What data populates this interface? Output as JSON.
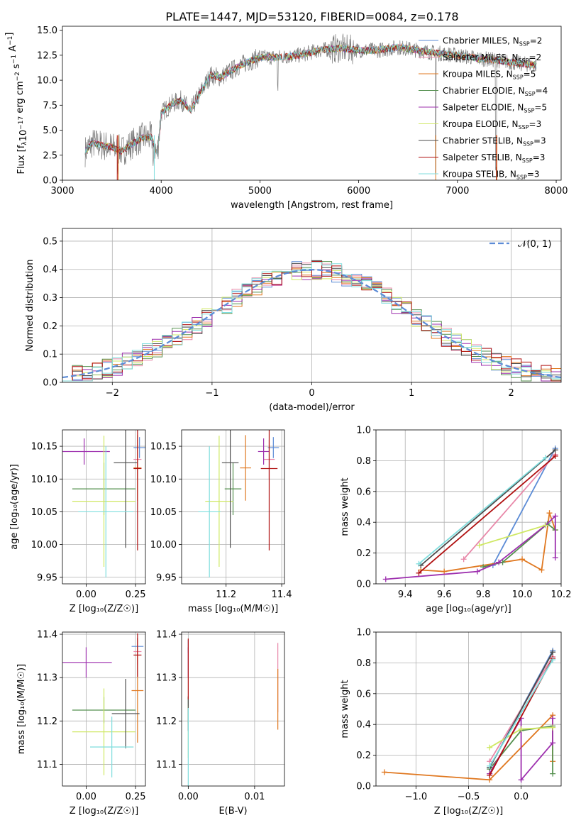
{
  "title": "PLATE=1447, MJD=53120, FIBERID=0084, z=0.178",
  "colors": {
    "blue": "#5b8bd6",
    "salmon": "#e887a8",
    "orange": "#e07820",
    "green": "#55904f",
    "purple": "#9d2fae",
    "yellow": "#cfe864",
    "dark": "#4b4b4b",
    "red": "#b01010",
    "cyan": "#7fdede",
    "gray": "#7f7f7f",
    "normal": "#5b8bd6"
  },
  "legend_models": [
    {
      "name": "Chabrier MILES",
      "nssp": "2",
      "color": "blue"
    },
    {
      "name": "Salpeter MILES",
      "nssp": "2",
      "color": "salmon"
    },
    {
      "name": "Kroupa MILES",
      "nssp": "5",
      "color": "orange"
    },
    {
      "name": "Chabrier ELODIE",
      "nssp": "4",
      "color": "green"
    },
    {
      "name": "Salpeter ELODIE",
      "nssp": "5",
      "color": "purple"
    },
    {
      "name": "Kroupa ELODIE",
      "nssp": "3",
      "color": "yellow"
    },
    {
      "name": "Chabrier STELIB",
      "nssp": "3",
      "color": "dark"
    },
    {
      "name": "Salpeter STELIB",
      "nssp": "3",
      "color": "red"
    },
    {
      "name": "Kroupa STELIB",
      "nssp": "3",
      "color": "cyan"
    }
  ],
  "chart_data": [
    {
      "id": "spectrum",
      "type": "line",
      "xlabel": "wavelength [Angstrom, rest frame]",
      "ylabel_main": "Flux [f",
      "ylabel_unit": "10",
      "ylabel_exp": "−17",
      "ylabel_rest": " erg cm",
      "ylabel_rest2": " s",
      "ylabel_rest3": " A",
      "xlim": [
        3000,
        8050
      ],
      "ylim": [
        0,
        15.4
      ],
      "xticks": [
        3000,
        4000,
        5000,
        6000,
        7000,
        8000
      ],
      "yticks": [
        0.0,
        2.5,
        5.0,
        7.5,
        10.0,
        12.5,
        15.0
      ],
      "spectrum_anchors": [
        [
          3230,
          2.9
        ],
        [
          3300,
          3.7
        ],
        [
          3400,
          3.5
        ],
        [
          3500,
          3.3
        ],
        [
          3600,
          2.9
        ],
        [
          3700,
          3.6
        ],
        [
          3800,
          4.2
        ],
        [
          3900,
          4.3
        ],
        [
          3960,
          2.6
        ],
        [
          4000,
          6.7
        ],
        [
          4100,
          7.6
        ],
        [
          4200,
          8.0
        ],
        [
          4300,
          7.0
        ],
        [
          4400,
          8.8
        ],
        [
          4500,
          10.5
        ],
        [
          4600,
          10.3
        ],
        [
          4800,
          11.5
        ],
        [
          5000,
          12.3
        ],
        [
          5200,
          12.3
        ],
        [
          5400,
          12.5
        ],
        [
          5600,
          13.0
        ],
        [
          5800,
          13.2
        ],
        [
          6000,
          13.0
        ],
        [
          6200,
          13.0
        ],
        [
          6400,
          13.3
        ],
        [
          6600,
          13.0
        ],
        [
          6800,
          12.7
        ],
        [
          7000,
          12.5
        ],
        [
          7200,
          12.2
        ],
        [
          7400,
          12.0
        ],
        [
          7600,
          11.7
        ],
        [
          7800,
          11.5
        ]
      ],
      "dips": [
        [
          3560,
          0.0
        ],
        [
          3920,
          0.6
        ],
        [
          5180,
          8.5
        ],
        [
          6780,
          0.0
        ],
        [
          7390,
          0.0
        ]
      ]
    },
    {
      "id": "residuals",
      "type": "histogram",
      "xlabel": "(data-model)/error",
      "ylabel": "Normed distribution",
      "xlim": [
        -2.5,
        2.5
      ],
      "ylim": [
        0,
        0.545
      ],
      "xticks": [
        -2,
        -1,
        0,
        1,
        2
      ],
      "xtick_labels": [
        "−2",
        "−1",
        "0",
        "1",
        "2"
      ],
      "yticks": [
        0.0,
        0.1,
        0.2,
        0.3,
        0.4,
        0.5
      ],
      "bin_width": 0.1,
      "normal_label": "𝒩(0, 1)"
    },
    {
      "id": "age_vs_Z",
      "type": "scatter",
      "xlabel": "Z [log₁₀(Z/Z☉)]",
      "ylabel": "age  [log₁₀(age/yr)]",
      "xlim": [
        -0.12,
        0.3
      ],
      "ylim": [
        9.94,
        10.175
      ],
      "xticks": [
        0.0,
        0.25
      ],
      "xtick_labels": [
        "0.00",
        "0.25"
      ],
      "yticks": [
        9.95,
        10.0,
        10.05,
        10.1,
        10.15
      ],
      "points": [
        {
          "color": "blue",
          "x": 0.27,
          "y": 10.148,
          "xerr": 0.03,
          "yerr": 0.016
        },
        {
          "color": "salmon",
          "x": 0.26,
          "y": 10.13,
          "xerr": 0.02,
          "yerr": 0.03
        },
        {
          "color": "orange",
          "x": 0.26,
          "y": 10.117,
          "xerr": 0.02,
          "yerr": 0.05
        },
        {
          "color": "green",
          "x": 0.09,
          "y": 10.085,
          "xerr": 0.16,
          "yerr": 0.04
        },
        {
          "color": "purple",
          "x": -0.01,
          "y": 10.142,
          "xerr": 0.13,
          "yerr": 0.02
        },
        {
          "color": "yellow",
          "x": 0.09,
          "y": 10.066,
          "xerr": 0.16,
          "yerr": 0.1
        },
        {
          "color": "dark",
          "x": 0.2,
          "y": 10.125,
          "xerr": 0.06,
          "yerr": 0.13
        },
        {
          "color": "red",
          "x": 0.26,
          "y": 10.116,
          "xerr": 0.02,
          "yerr": 0.125
        },
        {
          "color": "cyan",
          "x": 0.1,
          "y": 10.05,
          "xerr": 0.14,
          "yerr": 0.1
        }
      ]
    },
    {
      "id": "age_vs_mass",
      "type": "scatter",
      "xlabel": "mass [log₁₀(M/M☉)]",
      "ylabel": "",
      "xlim": [
        11.04,
        11.41
      ],
      "ylim": [
        9.94,
        10.175
      ],
      "xticks": [
        11.2,
        11.4
      ],
      "xtick_labels": [
        "11.2",
        "11.4"
      ],
      "yticks": [
        9.95,
        10.0,
        10.05,
        10.1,
        10.15
      ],
      "points": [
        {
          "color": "blue",
          "x": 11.37,
          "y": 10.148,
          "xerr": 0.02,
          "yerr": 0.016
        },
        {
          "color": "salmon",
          "x": 11.355,
          "y": 10.13,
          "xerr": 0.02,
          "yerr": 0.03
        },
        {
          "color": "orange",
          "x": 11.27,
          "y": 10.117,
          "xerr": 0.02,
          "yerr": 0.05
        },
        {
          "color": "green",
          "x": 11.225,
          "y": 10.085,
          "xerr": 0.03,
          "yerr": 0.04
        },
        {
          "color": "purple",
          "x": 11.335,
          "y": 10.142,
          "xerr": 0.02,
          "yerr": 0.02
        },
        {
          "color": "yellow",
          "x": 11.175,
          "y": 10.066,
          "xerr": 0.05,
          "yerr": 0.1
        },
        {
          "color": "dark",
          "x": 11.215,
          "y": 10.125,
          "xerr": 0.03,
          "yerr": 0.13
        },
        {
          "color": "red",
          "x": 11.355,
          "y": 10.116,
          "xerr": 0.03,
          "yerr": 0.125
        },
        {
          "color": "cyan",
          "x": 11.14,
          "y": 10.05,
          "xerr": 0.04,
          "yerr": 0.1
        }
      ]
    },
    {
      "id": "weight_vs_age",
      "type": "line",
      "xlabel": "age  [log₁₀(age/yr)]",
      "ylabel": "mass weight",
      "xlim": [
        9.25,
        10.2
      ],
      "ylim": [
        0,
        1.0
      ],
      "xticks": [
        9.4,
        9.6,
        9.8,
        10.0,
        10.2
      ],
      "xtick_labels": [
        "9.4",
        "9.6",
        "9.8",
        "10.0",
        "10.2"
      ],
      "yticks": [
        0.0,
        0.2,
        0.4,
        0.6,
        0.8,
        1.0
      ],
      "ytick_labels": [
        "0.0",
        "0.2",
        "0.4",
        "0.6",
        "0.8",
        "1.0"
      ],
      "series": [
        {
          "color": "blue",
          "x": [
            9.85,
            10.17
          ],
          "y": [
            0.12,
            0.88
          ]
        },
        {
          "color": "salmon",
          "x": [
            9.7,
            10.17
          ],
          "y": [
            0.16,
            0.84
          ]
        },
        {
          "color": "orange",
          "x": [
            9.48,
            9.6,
            10.0,
            10.1,
            10.14,
            10.17
          ],
          "y": [
            0.09,
            0.08,
            0.16,
            0.09,
            0.46,
            0.35
          ]
        },
        {
          "color": "green",
          "x": [
            9.8,
            9.9,
            10.13,
            10.17
          ],
          "y": [
            0.11,
            0.14,
            0.39,
            0.35
          ]
        },
        {
          "color": "purple",
          "x": [
            9.3,
            9.77,
            9.88,
            10.12,
            10.17,
            10.17
          ],
          "y": [
            0.03,
            0.08,
            0.14,
            0.38,
            0.44,
            0.17
          ]
        },
        {
          "color": "yellow",
          "x": [
            9.78,
            10.12
          ],
          "y": [
            0.25,
            0.38
          ]
        },
        {
          "color": "dark",
          "x": [
            9.48,
            10.17
          ],
          "y": [
            0.12,
            0.87
          ]
        },
        {
          "color": "red",
          "x": [
            9.47,
            10.17
          ],
          "y": [
            0.07,
            0.83
          ]
        },
        {
          "color": "cyan",
          "x": [
            9.47,
            10.12
          ],
          "y": [
            0.13,
            0.82
          ]
        }
      ]
    },
    {
      "id": "mass_vs_Z",
      "type": "scatter",
      "xlabel": "Z [log₁₀(Z/Z☉)]",
      "ylabel": "mass [log₁₀(M/M☉)]",
      "xlim": [
        -0.12,
        0.3
      ],
      "ylim": [
        11.05,
        11.405
      ],
      "xticks": [
        0.0,
        0.25
      ],
      "xtick_labels": [
        "0.00",
        "0.25"
      ],
      "yticks": [
        11.1,
        11.2,
        11.3,
        11.4
      ],
      "points": [
        {
          "color": "blue",
          "x": 0.26,
          "y": 11.372,
          "xerr": 0.03,
          "yerr": 0.02
        },
        {
          "color": "salmon",
          "x": 0.26,
          "y": 11.36,
          "xerr": 0.02,
          "yerr": 0.03
        },
        {
          "color": "orange",
          "x": 0.26,
          "y": 11.27,
          "xerr": 0.03,
          "yerr": 0.12
        },
        {
          "color": "green",
          "x": 0.09,
          "y": 11.225,
          "xerr": 0.16,
          "yerr": 0.03
        },
        {
          "color": "purple",
          "x": 0.0,
          "y": 11.335,
          "xerr": 0.13,
          "yerr": 0.035
        },
        {
          "color": "yellow",
          "x": 0.09,
          "y": 11.175,
          "xerr": 0.16,
          "yerr": 0.1
        },
        {
          "color": "dark",
          "x": 0.2,
          "y": 11.217,
          "xerr": 0.07,
          "yerr": 0.08
        },
        {
          "color": "red",
          "x": 0.26,
          "y": 11.352,
          "xerr": 0.02,
          "yerr": 0.05
        },
        {
          "color": "cyan",
          "x": 0.13,
          "y": 11.14,
          "xerr": 0.11,
          "yerr": 0.07
        }
      ]
    },
    {
      "id": "mass_vs_ebv",
      "type": "scatter",
      "xlabel": "E(B-V)",
      "ylabel": "",
      "xlim": [
        -0.001,
        0.0145
      ],
      "ylim": [
        11.05,
        11.405
      ],
      "xticks": [
        0.0,
        0.01
      ],
      "xtick_labels": [
        "0.00",
        "0.01"
      ],
      "yticks": [
        11.1,
        11.2,
        11.3,
        11.4
      ],
      "points": [
        {
          "color": "blue",
          "x": 0.0,
          "y": 11.372,
          "xerr": 0.0,
          "yerr": 0.015
        },
        {
          "color": "salmon",
          "x": 0.0135,
          "y": 11.3,
          "xerr": 0.0,
          "yerr": 0.08
        },
        {
          "color": "orange",
          "x": 0.0135,
          "y": 11.25,
          "xerr": 0.0,
          "yerr": 0.07
        },
        {
          "color": "green",
          "x": 0.0,
          "y": 11.225,
          "xerr": 0.0,
          "yerr": 0.03
        },
        {
          "color": "purple",
          "x": 0.0,
          "y": 11.335,
          "xerr": 0.0,
          "yerr": 0.035
        },
        {
          "color": "yellow",
          "x": 0.0,
          "y": 11.175,
          "xerr": 0.0,
          "yerr": 0.06
        },
        {
          "color": "dark",
          "x": 0.0,
          "y": 11.217,
          "xerr": 0.0,
          "yerr": 0.04
        },
        {
          "color": "red",
          "x": 0.0,
          "y": 11.32,
          "xerr": 0.0,
          "yerr": 0.07
        },
        {
          "color": "cyan",
          "x": 0.0,
          "y": 11.14,
          "xerr": 0.0,
          "yerr": 0.09
        }
      ]
    },
    {
      "id": "weight_vs_Z",
      "type": "line",
      "xlabel": "Z [log₁₀(Z/Z☉)]",
      "ylabel": "mass weight",
      "xlim": [
        -1.38,
        0.38
      ],
      "ylim": [
        0,
        1.0
      ],
      "xticks": [
        -1.0,
        -0.5,
        0.0
      ],
      "xtick_labels": [
        "−1.0",
        "−0.5",
        "0.0"
      ],
      "yticks": [
        0.0,
        0.2,
        0.4,
        0.6,
        0.8,
        1.0
      ],
      "ytick_labels": [
        "0.0",
        "0.2",
        "0.4",
        "0.6",
        "0.8",
        "1.0"
      ],
      "series": [
        {
          "color": "blue",
          "x": [
            -0.3,
            0.3
          ],
          "y": [
            0.12,
            0.88
          ]
        },
        {
          "color": "salmon",
          "x": [
            -0.3,
            0.3
          ],
          "y": [
            0.16,
            0.84
          ]
        },
        {
          "color": "orange",
          "x": [
            -1.3,
            -0.3,
            0.3,
            0.3
          ],
          "y": [
            0.09,
            0.04,
            0.46,
            0.16
          ]
        },
        {
          "color": "green",
          "x": [
            -0.3,
            0.0,
            0.3,
            0.3
          ],
          "y": [
            0.11,
            0.36,
            0.39,
            0.08
          ]
        },
        {
          "color": "purple",
          "x": [
            -0.3,
            0.0,
            0.0,
            0.3,
            0.3
          ],
          "y": [
            0.08,
            0.44,
            0.04,
            0.28,
            0.44
          ]
        },
        {
          "color": "yellow",
          "x": [
            -0.3,
            0.0,
            0.3
          ],
          "y": [
            0.25,
            0.37,
            0.38
          ]
        },
        {
          "color": "dark",
          "x": [
            -0.3,
            0.3
          ],
          "y": [
            0.12,
            0.87
          ]
        },
        {
          "color": "red",
          "x": [
            -0.3,
            0.3
          ],
          "y": [
            0.07,
            0.83
          ]
        },
        {
          "color": "cyan",
          "x": [
            -0.3,
            0.3
          ],
          "y": [
            0.13,
            0.82
          ]
        }
      ]
    }
  ]
}
